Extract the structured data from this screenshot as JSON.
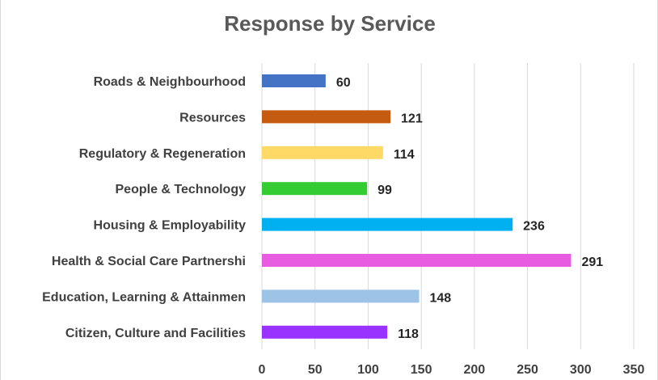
{
  "chart_data": {
    "type": "bar",
    "orientation": "horizontal",
    "title": "Response by Service",
    "xlabel": "",
    "ylabel": "",
    "categories": [
      "Roads & Neighbourhood",
      "Resources",
      "Regulatory & Regeneration",
      "People & Technology",
      "Housing & Employability",
      "Health & Social Care Partnershi",
      "Education, Learning & Attainmen",
      "Citizen, Culture and Facilities"
    ],
    "values": [
      60,
      121,
      114,
      99,
      236,
      291,
      148,
      118
    ],
    "colors": [
      "#4472c4",
      "#c55a11",
      "#ffd966",
      "#33cc33",
      "#00b0f0",
      "#e75ce0",
      "#9dc3e6",
      "#9933ff"
    ],
    "xlim": [
      0,
      350
    ],
    "xticks": [
      0,
      50,
      100,
      150,
      200,
      250,
      300,
      350
    ],
    "grid": true,
    "data_labels": true,
    "legend": "none"
  }
}
